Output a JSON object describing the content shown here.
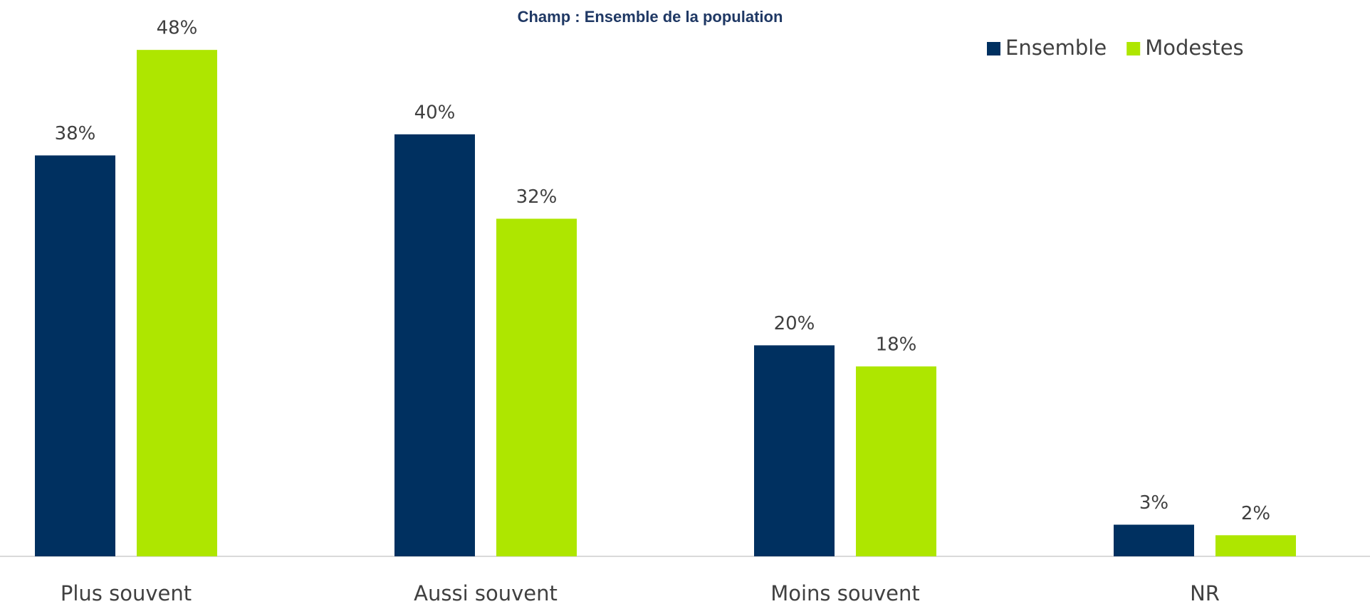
{
  "chart_data": {
    "type": "bar",
    "title": "Champ : Ensemble de la population",
    "categories": [
      "Plus souvent",
      "Aussi souvent",
      "Moins souvent",
      "NR"
    ],
    "series": [
      {
        "name": "Ensemble",
        "color": "#003060",
        "values": [
          38,
          40,
          20,
          3
        ],
        "value_labels": [
          "38%",
          "40%",
          "20%",
          "3%"
        ]
      },
      {
        "name": "Modestes",
        "color": "#aee600",
        "values": [
          48,
          32,
          18,
          2
        ],
        "value_labels": [
          "48%",
          "32%",
          "18%",
          "2%"
        ]
      }
    ],
    "legend": "top-right"
  }
}
